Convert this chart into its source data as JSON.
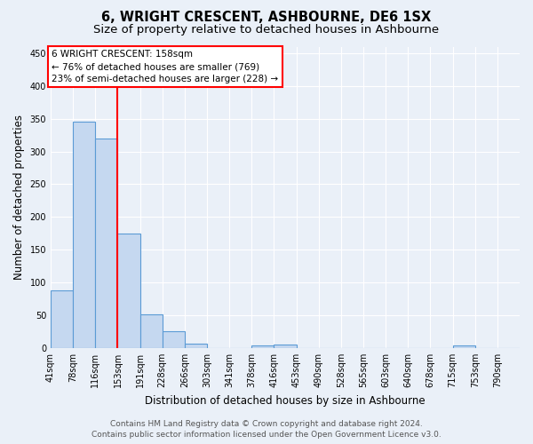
{
  "title": "6, WRIGHT CRESCENT, ASHBOURNE, DE6 1SX",
  "subtitle": "Size of property relative to detached houses in Ashbourne",
  "xlabel": "Distribution of detached houses by size in Ashbourne",
  "ylabel": "Number of detached properties",
  "footer_line1": "Contains HM Land Registry data © Crown copyright and database right 2024.",
  "footer_line2": "Contains public sector information licensed under the Open Government Licence v3.0.",
  "categories": [
    "41sqm",
    "78sqm",
    "116sqm",
    "153sqm",
    "191sqm",
    "228sqm",
    "266sqm",
    "303sqm",
    "341sqm",
    "378sqm",
    "416sqm",
    "453sqm",
    "490sqm",
    "528sqm",
    "565sqm",
    "603sqm",
    "640sqm",
    "678sqm",
    "715sqm",
    "753sqm",
    "790sqm"
  ],
  "values": [
    88,
    345,
    320,
    175,
    52,
    25,
    7,
    0,
    0,
    4,
    5,
    0,
    0,
    0,
    0,
    0,
    0,
    0,
    4,
    0,
    0
  ],
  "bar_color": "#c5d8f0",
  "bar_edge_color": "#5b9bd5",
  "annotation_box_text_line1": "6 WRIGHT CRESCENT: 158sqm",
  "annotation_box_text_line2": "← 76% of detached houses are smaller (769)",
  "annotation_box_text_line3": "23% of semi-detached houses are larger (228) →",
  "annotation_box_color": "white",
  "annotation_box_edge_color": "red",
  "vline_bin_index": 3,
  "vline_color": "red",
  "ylim": [
    0,
    460
  ],
  "background_color": "#eaf0f8",
  "grid_color": "white",
  "title_fontsize": 10.5,
  "subtitle_fontsize": 9.5,
  "axis_label_fontsize": 8.5,
  "tick_fontsize": 7,
  "footer_fontsize": 6.5,
  "annot_fontsize": 7.5
}
